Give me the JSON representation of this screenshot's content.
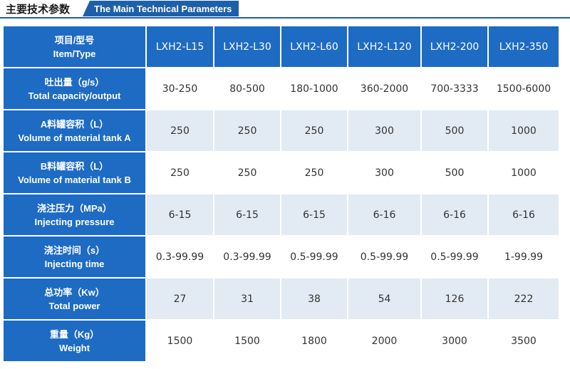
{
  "header": {
    "title_cn": "主要技术参数",
    "title_en": "The Main Technical Parameters"
  },
  "table": {
    "header_cn": "项目/型号",
    "header_en": "Item/Type",
    "models": [
      "LXH2-L15",
      "LXH2-L30",
      "LXH2-L60",
      "LXH2-L120",
      "LXH2-200",
      "LXH2-350"
    ],
    "rows": [
      {
        "cn": "吐出量（g/s）",
        "en": "Total capacity/output",
        "values": [
          "30-250",
          "80-500",
          "180-1000",
          "360-2000",
          "700-3333",
          "1500-6000"
        ]
      },
      {
        "cn": "A料罐容积（L）",
        "en": "Volume of material tank A",
        "values": [
          "250",
          "250",
          "250",
          "300",
          "500",
          "1000"
        ]
      },
      {
        "cn": "B料罐容积（L）",
        "en": "Volume of material tank B",
        "values": [
          "250",
          "250",
          "250",
          "300",
          "500",
          "1000"
        ]
      },
      {
        "cn": "浇注压力（MPa）",
        "en": "Injecting pressure",
        "values": [
          "6-15",
          "6-15",
          "6-15",
          "6-16",
          "6-16",
          "6-16"
        ]
      },
      {
        "cn": "浇注时间（s）",
        "en": "Injecting time",
        "values": [
          "0.3-99.99",
          "0.3-99.99",
          "0.5-99.99",
          "0.5-99.99",
          "0.5-99.99",
          "1-99.99"
        ]
      },
      {
        "cn": "总功率（Kw）",
        "en": "Total power",
        "values": [
          "27",
          "31",
          "38",
          "54",
          "126",
          "222"
        ]
      },
      {
        "cn": "重量（Kg）",
        "en": "Weight",
        "values": [
          "1500",
          "1500",
          "1800",
          "2000",
          "3000",
          "3500"
        ]
      }
    ]
  },
  "colors": {
    "accent": "#1e6bc4",
    "title_bar": "#1e5fa9",
    "row_alt": "#e2eaf3"
  }
}
